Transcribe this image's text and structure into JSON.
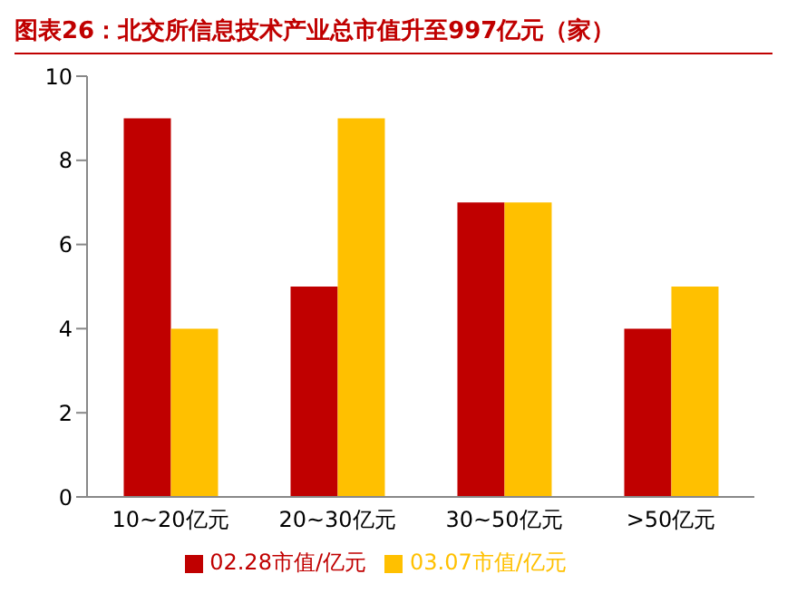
{
  "chart_data": {
    "type": "bar",
    "title": "图表26：北交所信息技术产业总市值升至997亿元（家）",
    "categories": [
      "10~20亿元",
      "20~30亿元",
      "30~50亿元",
      ">50亿元"
    ],
    "series": [
      {
        "name": "02.28市值/亿元",
        "color": "#c00000",
        "values": [
          9,
          5,
          7,
          4
        ]
      },
      {
        "name": "03.07市值/亿元",
        "color": "#ffc000",
        "values": [
          4,
          9,
          7,
          5
        ]
      }
    ],
    "ylim": [
      0,
      10
    ],
    "yticks": [
      0,
      2,
      4,
      6,
      8,
      10
    ],
    "grid": false,
    "legend": "bottom"
  }
}
